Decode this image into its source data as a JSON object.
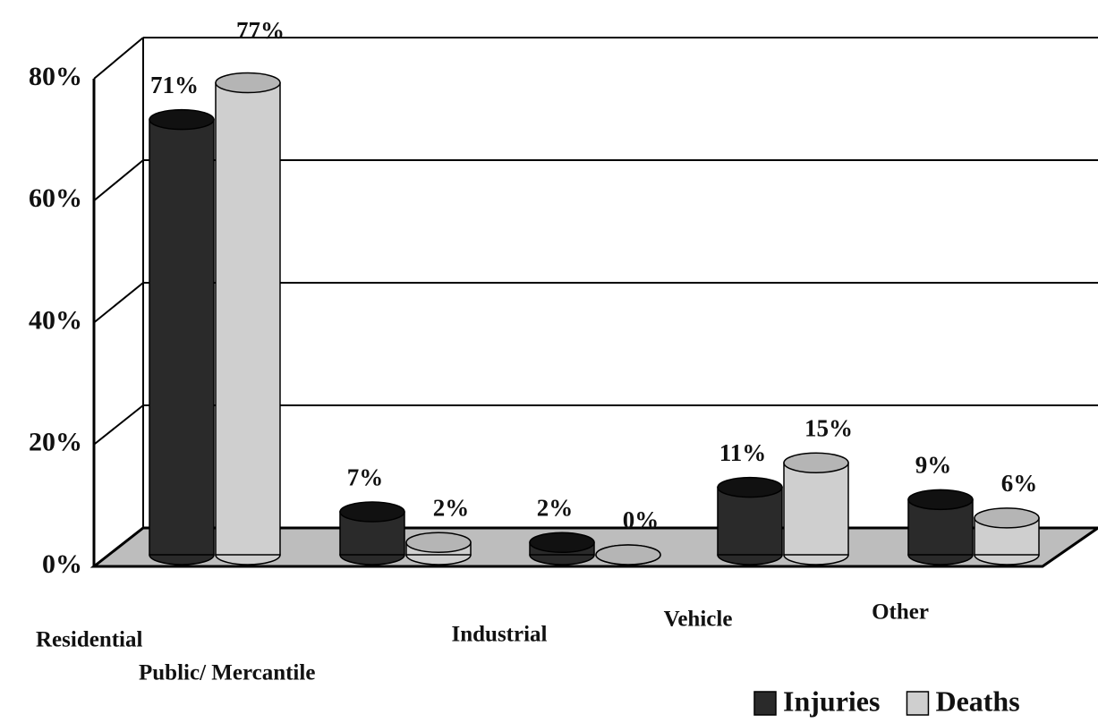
{
  "chart_data": {
    "type": "bar3d",
    "categories": [
      "Residential",
      "Public/ Mercantile",
      "Industrial",
      "Vehicle",
      "Other"
    ],
    "series": [
      {
        "name": "Injuries",
        "color": "#2a2a2a",
        "values": [
          71,
          7,
          2,
          11,
          9
        ],
        "value_labels": [
          "71%",
          "7%",
          "2%",
          "11%",
          "9%"
        ]
      },
      {
        "name": "Deaths",
        "color": "#cfcfcf",
        "values": [
          77,
          2,
          0,
          15,
          6
        ],
        "value_labels": [
          "77%",
          "2%",
          "0%",
          "15%",
          "6%"
        ]
      }
    ],
    "ylim": [
      0,
      80
    ],
    "yticks": [
      {
        "value": 0,
        "label": "0%"
      },
      {
        "value": 20,
        "label": "20%"
      },
      {
        "value": 40,
        "label": "40%"
      },
      {
        "value": 60,
        "label": "60%"
      },
      {
        "value": 80,
        "label": "80%"
      }
    ],
    "grid": true,
    "legend": "bottom-right"
  }
}
